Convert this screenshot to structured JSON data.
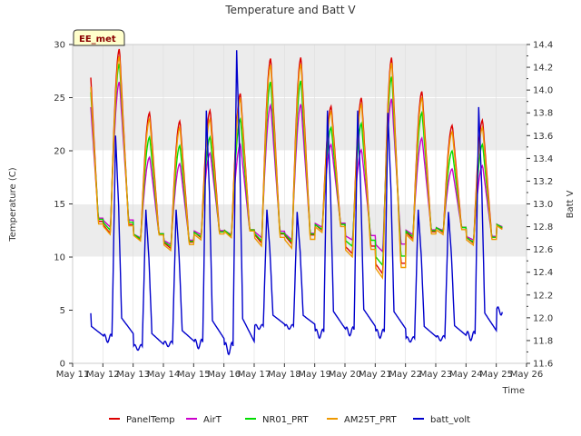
{
  "chart_data": {
    "type": "line",
    "title": "Temperature and Batt V",
    "xlabel": "Time",
    "ylabel_left": "Temperature (C)",
    "ylabel_right": "Batt V",
    "station_label": "EE_met",
    "ylim_left": [
      0,
      30
    ],
    "ylim_right": [
      11.6,
      14.4
    ],
    "yticks_left": [
      0,
      5,
      10,
      15,
      20,
      25,
      30
    ],
    "yticks_right": [
      11.6,
      11.8,
      12.0,
      12.2,
      12.4,
      12.6,
      12.8,
      13.0,
      13.2,
      13.4,
      13.6,
      13.8,
      14.0,
      14.2,
      14.4
    ],
    "x_range_days": [
      11,
      26
    ],
    "x_tick_labels": [
      "May 11",
      "May 12",
      "May 13",
      "May 14",
      "May 15",
      "May 16",
      "May 17",
      "May 18",
      "May 19",
      "May 20",
      "May 21",
      "May 22",
      "May 23",
      "May 24",
      "May 25",
      "May 26"
    ],
    "x_tick_days": [
      11,
      12,
      13,
      14,
      15,
      16,
      17,
      18,
      19,
      20,
      21,
      22,
      23,
      24,
      25,
      26
    ],
    "grid": true,
    "shaded_bands_left": [
      [
        10,
        15
      ],
      [
        20,
        25
      ],
      [
        25,
        30
      ]
    ],
    "legend_position": "bottom",
    "series": [
      {
        "name": "PanelTemp",
        "axis": "left",
        "color": "#dd0000",
        "day_min": [
          12.5,
          12.2,
          11.6,
          10.8,
          11.8,
          11.9,
          11.3,
          11.2,
          12.5,
          10.3,
          8.4,
          11.7,
          12.3,
          11.3,
          12.6
        ],
        "day_max": [
          29.6,
          29.6,
          23.6,
          22.8,
          23.8,
          25.4,
          28.7,
          28.8,
          24.2,
          25.0,
          28.8,
          25.6,
          22.4,
          22.9
        ]
      },
      {
        "name": "AirT",
        "axis": "left",
        "color": "#cc00cc",
        "day_min": [
          13.0,
          12.8,
          11.8,
          11.2,
          12.1,
          12.1,
          11.8,
          11.6,
          12.8,
          11.6,
          10.5,
          12.1,
          12.5,
          11.6,
          12.8
        ],
        "day_max": [
          26.2,
          26.5,
          19.4,
          18.8,
          19.8,
          20.6,
          24.3,
          24.4,
          20.6,
          20.1,
          24.9,
          21.2,
          18.3,
          18.6
        ]
      },
      {
        "name": "NR01_PRT",
        "axis": "left",
        "color": "#00dd00",
        "day_min": [
          12.8,
          12.5,
          11.7,
          11.0,
          11.9,
          12.0,
          11.5,
          11.4,
          12.6,
          11.0,
          9.2,
          11.9,
          12.4,
          11.4,
          12.7
        ],
        "day_max": [
          27.9,
          28.2,
          21.3,
          20.5,
          21.3,
          23.0,
          26.5,
          26.6,
          22.2,
          22.6,
          27.0,
          23.6,
          20.0,
          20.6
        ]
      },
      {
        "name": "AM25T_PRT",
        "axis": "left",
        "color": "#ee9900",
        "day_min": [
          12.3,
          12.1,
          11.5,
          10.6,
          11.6,
          11.8,
          11.0,
          10.8,
          12.3,
          10.0,
          8.0,
          11.5,
          12.1,
          11.1,
          12.5
        ],
        "day_max": [
          28.6,
          28.9,
          23.0,
          22.2,
          23.0,
          24.9,
          28.1,
          28.2,
          23.7,
          24.4,
          28.3,
          25.0,
          21.8,
          22.2
        ]
      },
      {
        "name": "batt_volt",
        "axis": "right",
        "color": "#0000cc",
        "day_min": [
          11.82,
          11.82,
          11.74,
          11.77,
          11.77,
          11.73,
          11.92,
          11.92,
          11.86,
          11.88,
          11.86,
          11.81,
          11.82,
          11.84,
          12.06
        ],
        "day_max": [
          12.87,
          13.6,
          12.95,
          12.95,
          13.82,
          14.35,
          12.95,
          12.93,
          13.82,
          13.82,
          13.8,
          12.95,
          12.93,
          13.85
        ]
      }
    ]
  }
}
